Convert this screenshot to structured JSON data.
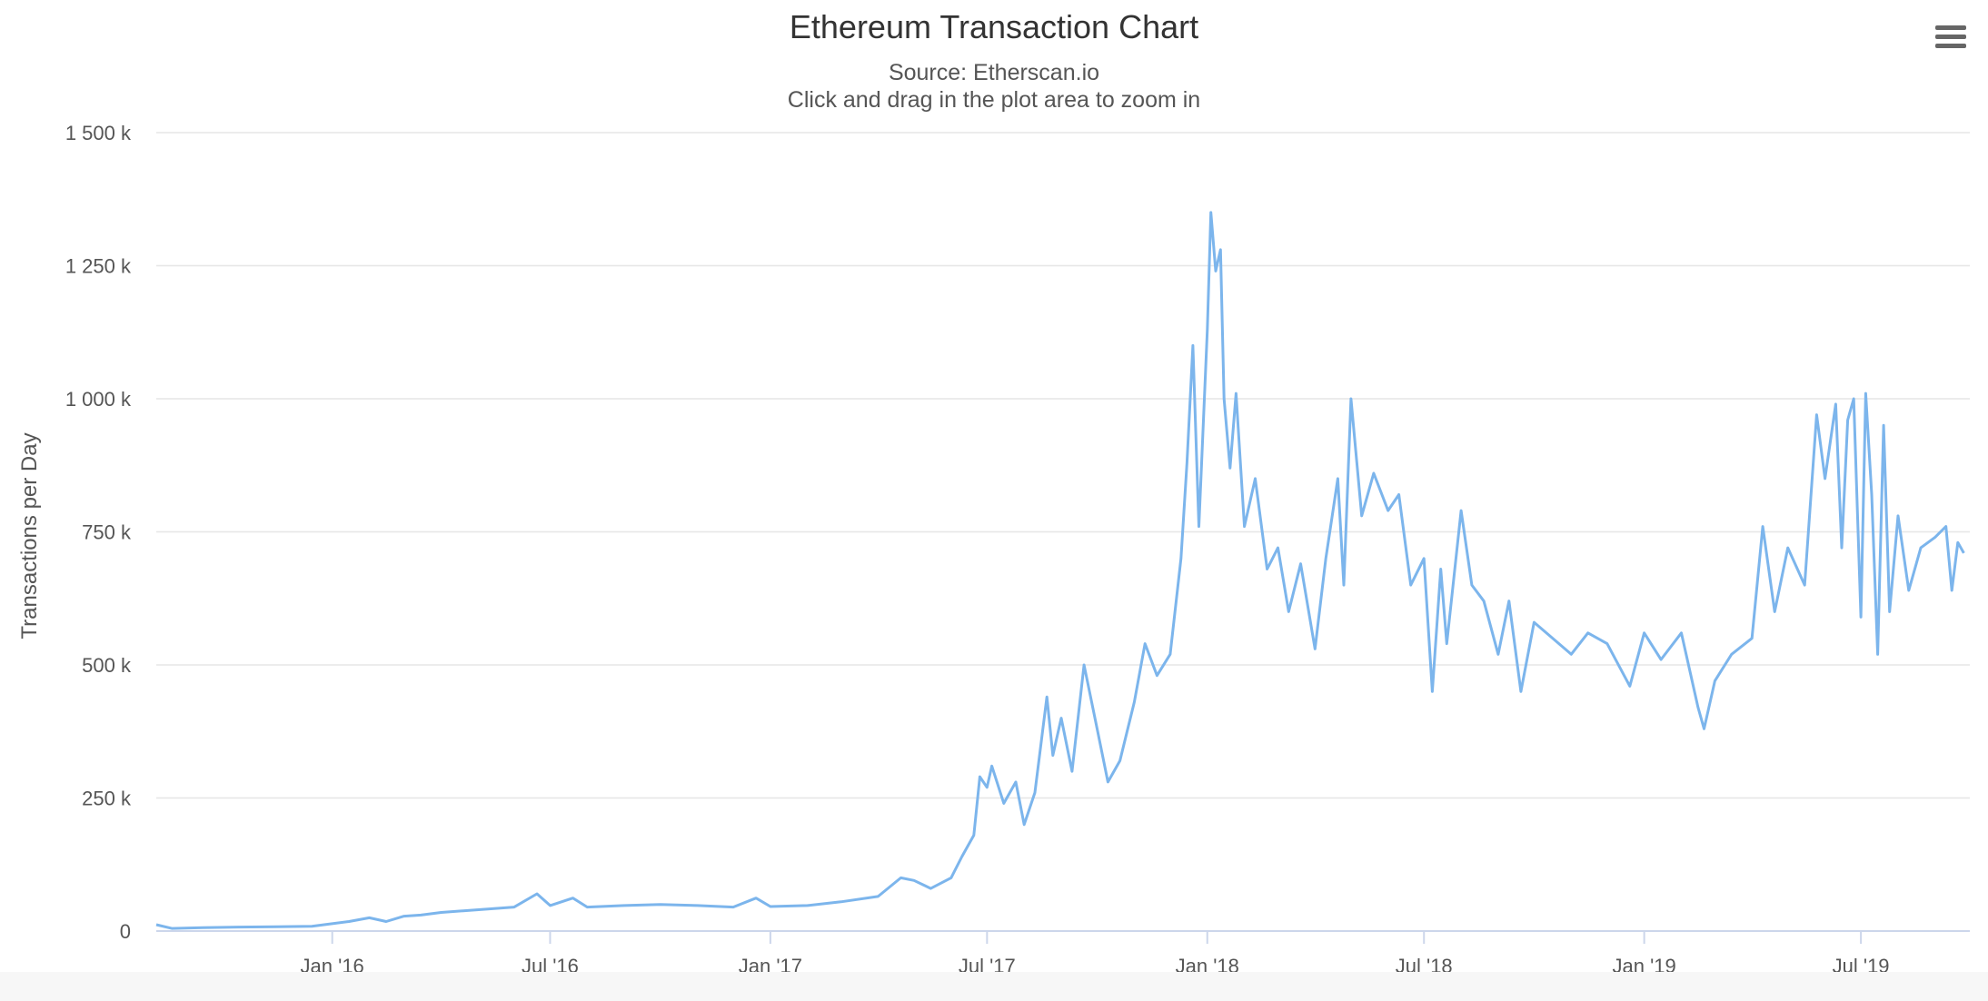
{
  "chart": {
    "title": "Ethereum Transaction Chart",
    "subtitle_source": "Source: Etherscan.io",
    "subtitle_hint": "Click and drag in the plot area to zoom in",
    "menu_icon": "hamburger-menu-icon",
    "line_color": "#7cb5ec",
    "grid_color": "#e6e6e6"
  },
  "chart_data": {
    "type": "line",
    "title": "Ethereum Transaction Chart",
    "subtitle": "Source: Etherscan.io",
    "xlabel": "",
    "ylabel": "Transactions per Day",
    "ylim": [
      0,
      1500000
    ],
    "xlim": [
      "2015-08-07",
      "2019-09-30"
    ],
    "yticks": [
      {
        "value": 0,
        "label": "0"
      },
      {
        "value": 250000,
        "label": "250 k"
      },
      {
        "value": 500000,
        "label": "500 k"
      },
      {
        "value": 750000,
        "label": "750 k"
      },
      {
        "value": 1000000,
        "label": "1 000 k"
      },
      {
        "value": 1250000,
        "label": "1 250 k"
      },
      {
        "value": 1500000,
        "label": "1 500 k"
      }
    ],
    "xticks": [
      {
        "value": "2016-01-01",
        "label": "Jan '16"
      },
      {
        "value": "2016-07-01",
        "label": "Jul '16"
      },
      {
        "value": "2017-01-01",
        "label": "Jan '17"
      },
      {
        "value": "2017-07-01",
        "label": "Jul '17"
      },
      {
        "value": "2018-01-01",
        "label": "Jan '18"
      },
      {
        "value": "2018-07-01",
        "label": "Jul '18"
      },
      {
        "value": "2019-01-01",
        "label": "Jan '19"
      },
      {
        "value": "2019-07-01",
        "label": "Jul '19"
      }
    ],
    "grid": true,
    "legend": "none",
    "series": [
      {
        "color": "#7cb5ec",
        "points": [
          [
            "2015-08-07",
            12000
          ],
          [
            "2015-08-20",
            5000
          ],
          [
            "2015-09-15",
            6500
          ],
          [
            "2015-10-15",
            7500
          ],
          [
            "2015-11-15",
            8000
          ],
          [
            "2015-12-15",
            9000
          ],
          [
            "2016-01-15",
            18000
          ],
          [
            "2016-02-01",
            25000
          ],
          [
            "2016-02-15",
            18000
          ],
          [
            "2016-03-01",
            28000
          ],
          [
            "2016-03-15",
            30000
          ],
          [
            "2016-04-01",
            35000
          ],
          [
            "2016-05-01",
            40000
          ],
          [
            "2016-06-01",
            45000
          ],
          [
            "2016-06-20",
            70000
          ],
          [
            "2016-07-01",
            48000
          ],
          [
            "2016-07-20",
            62000
          ],
          [
            "2016-08-01",
            45000
          ],
          [
            "2016-09-01",
            48000
          ],
          [
            "2016-10-01",
            50000
          ],
          [
            "2016-11-01",
            48000
          ],
          [
            "2016-12-01",
            45000
          ],
          [
            "2016-12-20",
            62000
          ],
          [
            "2017-01-01",
            46000
          ],
          [
            "2017-02-01",
            48000
          ],
          [
            "2017-03-01",
            55000
          ],
          [
            "2017-04-01",
            65000
          ],
          [
            "2017-04-20",
            100000
          ],
          [
            "2017-05-01",
            95000
          ],
          [
            "2017-05-15",
            80000
          ],
          [
            "2017-06-01",
            100000
          ],
          [
            "2017-06-10",
            140000
          ],
          [
            "2017-06-20",
            180000
          ],
          [
            "2017-06-25",
            290000
          ],
          [
            "2017-07-01",
            270000
          ],
          [
            "2017-07-05",
            310000
          ],
          [
            "2017-07-15",
            240000
          ],
          [
            "2017-07-25",
            280000
          ],
          [
            "2017-08-01",
            200000
          ],
          [
            "2017-08-10",
            260000
          ],
          [
            "2017-08-20",
            440000
          ],
          [
            "2017-08-25",
            330000
          ],
          [
            "2017-09-01",
            400000
          ],
          [
            "2017-09-10",
            300000
          ],
          [
            "2017-09-20",
            500000
          ],
          [
            "2017-10-01",
            380000
          ],
          [
            "2017-10-10",
            280000
          ],
          [
            "2017-10-20",
            320000
          ],
          [
            "2017-11-01",
            430000
          ],
          [
            "2017-11-10",
            540000
          ],
          [
            "2017-11-20",
            480000
          ],
          [
            "2017-12-01",
            520000
          ],
          [
            "2017-12-10",
            700000
          ],
          [
            "2017-12-15",
            880000
          ],
          [
            "2017-12-20",
            1100000
          ],
          [
            "2017-12-25",
            760000
          ],
          [
            "2018-01-01",
            1130000
          ],
          [
            "2018-01-04",
            1350000
          ],
          [
            "2018-01-08",
            1240000
          ],
          [
            "2018-01-12",
            1280000
          ],
          [
            "2018-01-15",
            1000000
          ],
          [
            "2018-01-20",
            870000
          ],
          [
            "2018-01-25",
            1010000
          ],
          [
            "2018-02-01",
            760000
          ],
          [
            "2018-02-10",
            850000
          ],
          [
            "2018-02-20",
            680000
          ],
          [
            "2018-03-01",
            720000
          ],
          [
            "2018-03-10",
            600000
          ],
          [
            "2018-03-20",
            690000
          ],
          [
            "2018-04-01",
            530000
          ],
          [
            "2018-04-10",
            700000
          ],
          [
            "2018-04-20",
            850000
          ],
          [
            "2018-04-25",
            650000
          ],
          [
            "2018-05-01",
            1000000
          ],
          [
            "2018-05-10",
            780000
          ],
          [
            "2018-05-20",
            860000
          ],
          [
            "2018-06-01",
            790000
          ],
          [
            "2018-06-10",
            820000
          ],
          [
            "2018-06-20",
            650000
          ],
          [
            "2018-07-01",
            700000
          ],
          [
            "2018-07-08",
            450000
          ],
          [
            "2018-07-15",
            680000
          ],
          [
            "2018-07-20",
            540000
          ],
          [
            "2018-08-01",
            790000
          ],
          [
            "2018-08-10",
            650000
          ],
          [
            "2018-08-20",
            620000
          ],
          [
            "2018-09-01",
            520000
          ],
          [
            "2018-09-10",
            620000
          ],
          [
            "2018-09-20",
            450000
          ],
          [
            "2018-10-01",
            580000
          ],
          [
            "2018-11-01",
            520000
          ],
          [
            "2018-11-15",
            560000
          ],
          [
            "2018-12-01",
            540000
          ],
          [
            "2018-12-20",
            460000
          ],
          [
            "2019-01-01",
            560000
          ],
          [
            "2019-01-15",
            510000
          ],
          [
            "2019-02-01",
            560000
          ],
          [
            "2019-02-15",
            420000
          ],
          [
            "2019-02-20",
            380000
          ],
          [
            "2019-03-01",
            470000
          ],
          [
            "2019-03-15",
            520000
          ],
          [
            "2019-04-01",
            550000
          ],
          [
            "2019-04-10",
            760000
          ],
          [
            "2019-04-20",
            600000
          ],
          [
            "2019-05-01",
            720000
          ],
          [
            "2019-05-15",
            650000
          ],
          [
            "2019-05-25",
            970000
          ],
          [
            "2019-06-01",
            850000
          ],
          [
            "2019-06-10",
            990000
          ],
          [
            "2019-06-15",
            720000
          ],
          [
            "2019-06-20",
            960000
          ],
          [
            "2019-06-25",
            1000000
          ],
          [
            "2019-07-01",
            590000
          ],
          [
            "2019-07-05",
            1010000
          ],
          [
            "2019-07-10",
            820000
          ],
          [
            "2019-07-15",
            520000
          ],
          [
            "2019-07-20",
            950000
          ],
          [
            "2019-07-25",
            600000
          ],
          [
            "2019-08-01",
            780000
          ],
          [
            "2019-08-10",
            640000
          ],
          [
            "2019-08-20",
            720000
          ],
          [
            "2019-09-01",
            740000
          ],
          [
            "2019-09-10",
            760000
          ],
          [
            "2019-09-15",
            640000
          ],
          [
            "2019-09-20",
            730000
          ],
          [
            "2019-09-25",
            710000
          ]
        ]
      }
    ]
  }
}
